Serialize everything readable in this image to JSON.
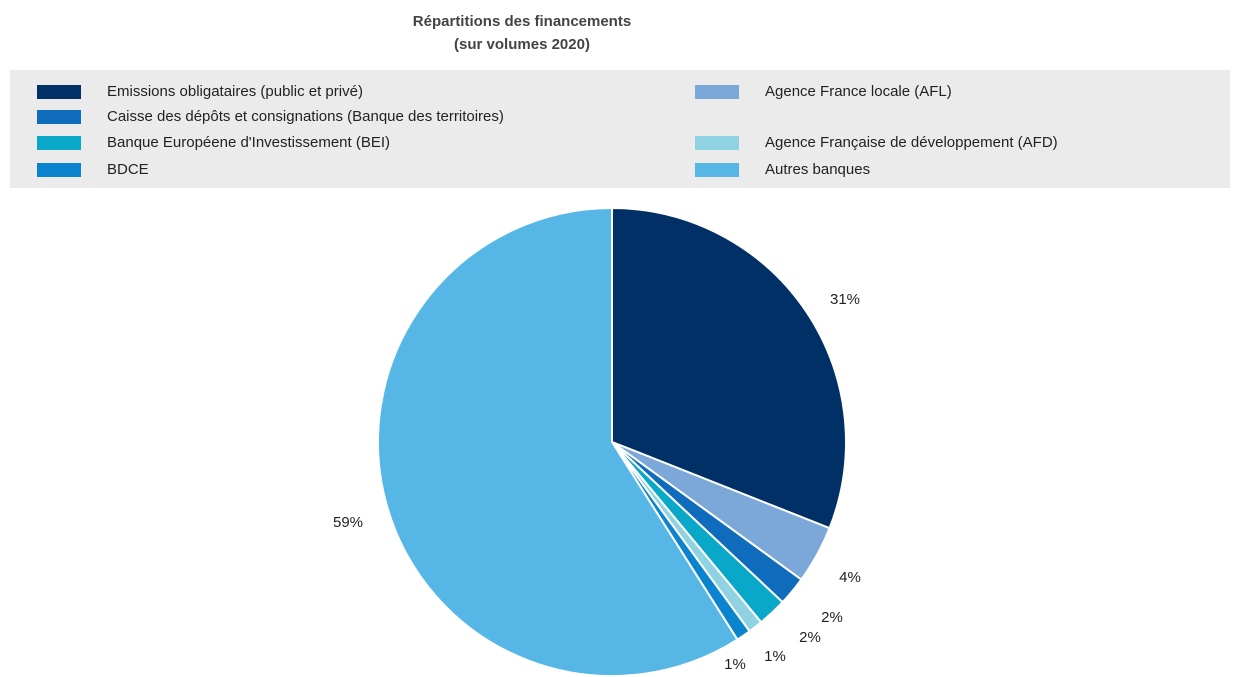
{
  "chart_data": {
    "type": "pie",
    "title": [
      "Répartitions des financements",
      "(sur volumes 2020)"
    ],
    "categories": [
      "Emissions obligataires (public et privé)",
      "Agence France locale (AFL)",
      "Caisse des dépôts et consignations (Banque des territoires)",
      "Banque Européene d'Investissement (BEI)",
      "Agence Française de développement (AFD)",
      "BDCE",
      "Autres banques"
    ],
    "values": [
      31,
      4,
      2,
      2,
      1,
      1,
      59
    ],
    "value_labels": [
      "31%",
      "4%",
      "2%",
      "2%",
      "1%",
      "1%",
      "59%"
    ],
    "colors": [
      "#003066",
      "#7ba7d9",
      "#0f6cbd",
      "#0aa8c8",
      "#8fd3e3",
      "#0b84d0",
      "#56b7e6"
    ],
    "legend": "top"
  }
}
